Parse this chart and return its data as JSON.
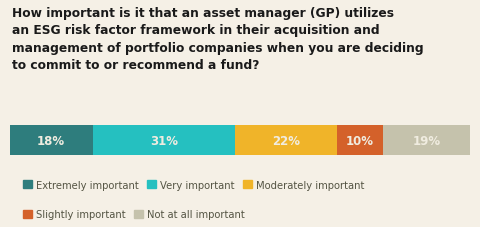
{
  "title_lines": [
    "How important is it that an asset manager (GP) utilizes",
    "an ESG risk factor framework in their acquisition and",
    "management of portfolio companies when you are deciding",
    "to commit to or recommend a fund?"
  ],
  "categories": [
    "Extremely important",
    "Very important",
    "Moderately important",
    "Slightly important",
    "Not at all important"
  ],
  "values": [
    18,
    31,
    22,
    10,
    19
  ],
  "colors": [
    "#2e7d7d",
    "#25c0c0",
    "#f0b429",
    "#d4612a",
    "#c5c2ac"
  ],
  "label_color": "#f0ece0",
  "background_color": "#f5f0e6",
  "bar_label_fontsize": 8.5,
  "legend_fontsize": 7.2,
  "title_fontsize": 8.8,
  "legend_text_color": "#555544"
}
